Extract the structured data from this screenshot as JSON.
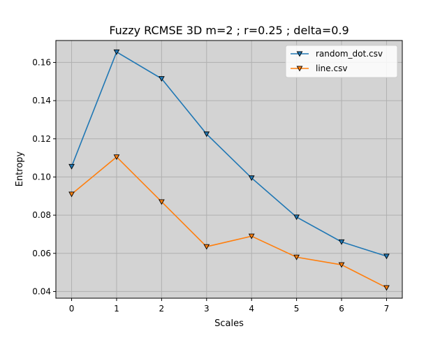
{
  "chart_data": {
    "type": "line",
    "title": "Fuzzy RCMSE 3D m=2 ; r=0.25 ; delta=0.9",
    "xlabel": "Scales",
    "ylabel": "Entropy",
    "x": [
      0,
      1,
      2,
      3,
      4,
      5,
      6,
      7
    ],
    "xlim": [
      -0.35,
      7.35
    ],
    "ylim": [
      0.0365,
      0.1715
    ],
    "xticks": [
      0,
      1,
      2,
      3,
      4,
      5,
      6,
      7
    ],
    "yticks": [
      0.04,
      0.06,
      0.08,
      0.1,
      0.12,
      0.14,
      0.16
    ],
    "ytick_labels": [
      "0.04",
      "0.06",
      "0.08",
      "0.10",
      "0.12",
      "0.14",
      "0.16"
    ],
    "grid": true,
    "background": "#d3d3d3",
    "marker": "triangle-down",
    "legend_position": "top-right",
    "series": [
      {
        "name": "random_dot.csv",
        "color": "#1f77b4",
        "values": [
          0.1055,
          0.1655,
          0.1515,
          0.1225,
          0.0995,
          0.079,
          0.066,
          0.0585
        ]
      },
      {
        "name": "line.csv",
        "color": "#ff7f0e",
        "values": [
          0.091,
          0.1105,
          0.087,
          0.0635,
          0.069,
          0.058,
          0.054,
          0.042
        ]
      }
    ]
  }
}
